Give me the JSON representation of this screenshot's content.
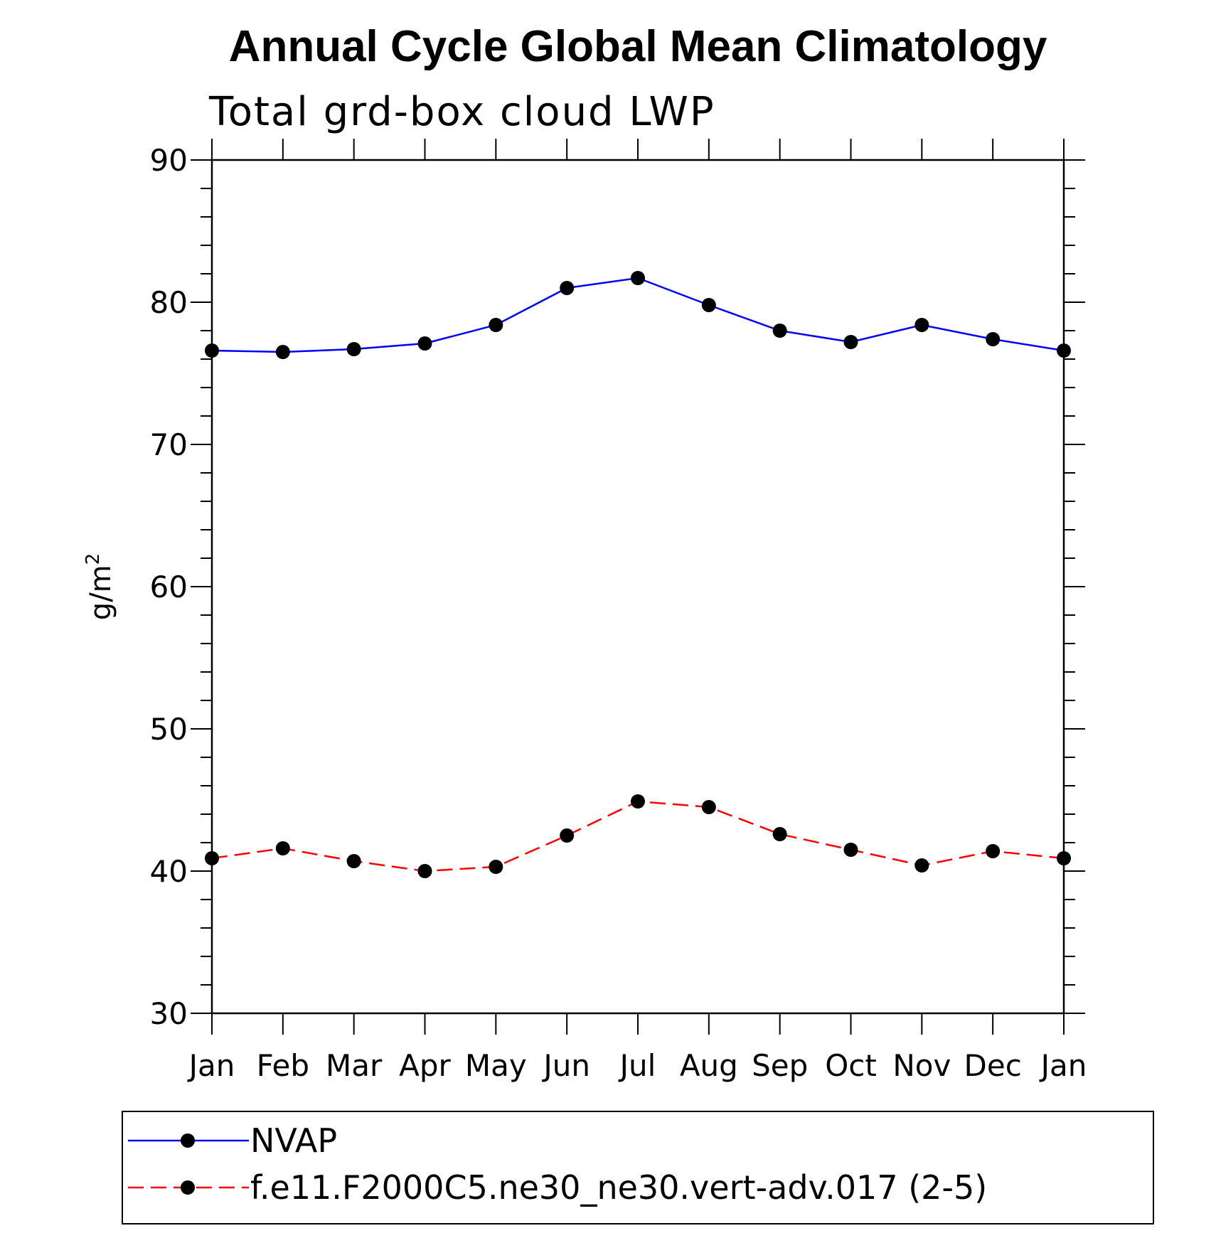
{
  "chart_data": {
    "type": "line",
    "title": "Annual Cycle Global Mean Climatology",
    "subtitle": "Total grd-box cloud LWP",
    "ylabel": "g/m",
    "ylabel_superscript": "2",
    "ylim": [
      30,
      90
    ],
    "yticks": [
      30,
      40,
      50,
      60,
      70,
      80,
      90
    ],
    "categories": [
      "Jan",
      "Feb",
      "Mar",
      "Apr",
      "May",
      "Jun",
      "Jul",
      "Aug",
      "Sep",
      "Oct",
      "Nov",
      "Dec",
      "Jan"
    ],
    "series": [
      {
        "name": "NVAP",
        "color": "#0000ff",
        "style": "solid",
        "values": [
          76.6,
          76.5,
          76.7,
          77.1,
          78.4,
          81.0,
          81.7,
          79.8,
          78.0,
          77.2,
          78.4,
          77.4,
          76.6
        ]
      },
      {
        "name": "f.e11.F2000C5.ne30_ne30.vert-adv.017 (2-5)",
        "color": "#ff0000",
        "style": "dashed",
        "values": [
          40.9,
          41.6,
          40.7,
          40.0,
          40.3,
          42.5,
          44.9,
          44.5,
          42.6,
          41.5,
          40.4,
          41.4,
          40.9
        ]
      }
    ],
    "legend_position": "bottom"
  }
}
